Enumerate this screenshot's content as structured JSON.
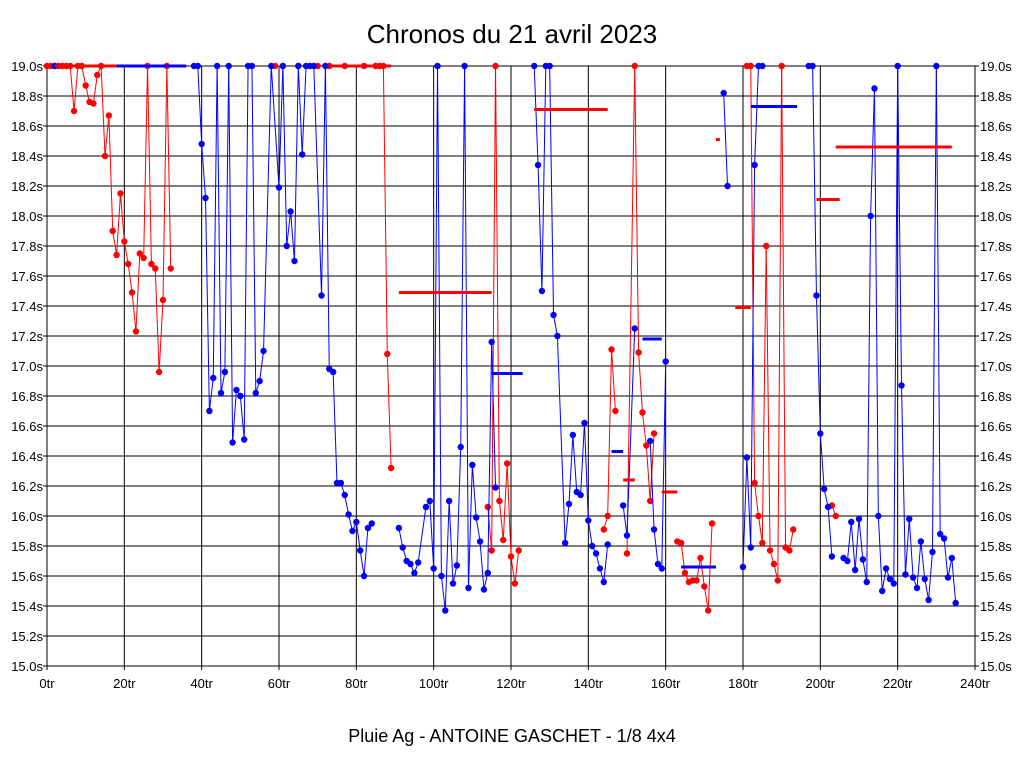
{
  "chart_data": {
    "type": "line",
    "title": "Chronos du 21 avril 2023",
    "subtitle": "Pluie Ag - ANTOINE GASCHET - 1/8 4x4",
    "xlabel": "",
    "ylabel": "",
    "xlim": [
      0,
      240
    ],
    "ylim": [
      15.0,
      19.0
    ],
    "grid": true,
    "legend": "none",
    "x_ticks": [
      {
        "value": 0,
        "label": "0tr"
      },
      {
        "value": 20,
        "label": "20tr"
      },
      {
        "value": 40,
        "label": "40tr"
      },
      {
        "value": 60,
        "label": "60tr"
      },
      {
        "value": 80,
        "label": "80tr"
      },
      {
        "value": 100,
        "label": "100tr"
      },
      {
        "value": 120,
        "label": "120tr"
      },
      {
        "value": 140,
        "label": "140tr"
      },
      {
        "value": 160,
        "label": "160tr"
      },
      {
        "value": 180,
        "label": "180tr"
      },
      {
        "value": 200,
        "label": "200tr"
      },
      {
        "value": 220,
        "label": "220tr"
      },
      {
        "value": 240,
        "label": "240tr"
      }
    ],
    "y_ticks": [
      {
        "value": 19.0,
        "label": "19.0s"
      },
      {
        "value": 18.8,
        "label": "18.8s"
      },
      {
        "value": 18.6,
        "label": "18.6s"
      },
      {
        "value": 18.4,
        "label": "18.4s"
      },
      {
        "value": 18.2,
        "label": "18.2s"
      },
      {
        "value": 18.0,
        "label": "18.0s"
      },
      {
        "value": 17.8,
        "label": "17.8s"
      },
      {
        "value": 17.6,
        "label": "17.6s"
      },
      {
        "value": 17.4,
        "label": "17.4s"
      },
      {
        "value": 17.2,
        "label": "17.2s"
      },
      {
        "value": 17.0,
        "label": "17.0s"
      },
      {
        "value": 16.8,
        "label": "16.8s"
      },
      {
        "value": 16.6,
        "label": "16.6s"
      },
      {
        "value": 16.4,
        "label": "16.4s"
      },
      {
        "value": 16.2,
        "label": "16.2s"
      },
      {
        "value": 16.0,
        "label": "16.0s"
      },
      {
        "value": 15.8,
        "label": "15.8s"
      },
      {
        "value": 15.6,
        "label": "15.6s"
      },
      {
        "value": 15.4,
        "label": "15.4s"
      },
      {
        "value": 15.2,
        "label": "15.2s"
      },
      {
        "value": 15.0,
        "label": "15.0s"
      }
    ],
    "series": [
      {
        "color": "#ff0000",
        "values": [
          [
            0,
            19.0
          ],
          [
            1,
            19.0
          ],
          [
            2,
            19.0
          ],
          [
            3,
            19.0
          ],
          [
            4,
            19.0
          ],
          [
            5,
            19.0
          ],
          [
            6,
            19.0
          ],
          [
            7,
            18.7
          ],
          [
            8,
            19.0
          ],
          [
            9,
            19.0
          ],
          [
            10,
            18.87
          ],
          [
            11,
            18.76
          ],
          [
            12,
            18.75
          ],
          [
            13,
            18.94
          ],
          [
            14,
            19.0
          ],
          [
            15,
            18.4
          ],
          [
            16,
            18.67
          ],
          [
            17,
            17.9
          ],
          [
            18,
            17.74
          ],
          [
            19,
            18.15
          ],
          [
            20,
            17.83
          ],
          [
            21,
            17.68
          ],
          [
            22,
            17.49
          ],
          [
            23,
            17.23
          ],
          [
            24,
            17.75
          ],
          [
            25,
            17.72
          ],
          [
            26,
            19.0
          ],
          [
            27,
            17.68
          ],
          [
            28,
            17.65
          ],
          [
            29,
            16.96
          ],
          [
            30,
            17.44
          ],
          [
            31,
            19.0
          ],
          [
            32,
            17.65
          ],
          [
            59,
            19.0
          ],
          [
            61,
            19.0
          ],
          [
            65,
            19.0
          ],
          [
            70,
            19.0
          ],
          [
            73,
            19.0
          ],
          [
            77,
            19.0
          ],
          [
            82,
            19.0
          ],
          [
            85,
            19.0
          ],
          [
            86,
            19.0
          ],
          [
            87,
            19.0
          ],
          [
            88,
            17.08
          ],
          [
            89,
            16.32
          ],
          [
            114,
            16.06
          ],
          [
            115,
            15.77
          ],
          [
            116,
            19.0
          ],
          [
            117,
            16.1
          ],
          [
            118,
            15.84
          ],
          [
            119,
            16.35
          ],
          [
            120,
            15.73
          ],
          [
            121,
            15.55
          ],
          [
            122,
            15.77
          ],
          [
            144,
            15.91
          ],
          [
            145,
            16.0
          ],
          [
            146,
            17.11
          ],
          [
            147,
            16.7
          ],
          [
            150,
            15.75
          ],
          [
            152,
            19.0
          ],
          [
            153,
            17.09
          ],
          [
            154,
            16.69
          ],
          [
            155,
            16.47
          ],
          [
            156,
            16.1
          ],
          [
            157,
            16.55
          ],
          [
            163,
            15.83
          ],
          [
            164,
            15.82
          ],
          [
            165,
            15.62
          ],
          [
            166,
            15.56
          ],
          [
            167,
            15.57
          ],
          [
            168,
            15.57
          ],
          [
            169,
            15.72
          ],
          [
            170,
            15.53
          ],
          [
            171,
            15.37
          ],
          [
            172,
            15.95
          ],
          [
            181,
            19.0
          ],
          [
            182,
            19.0
          ],
          [
            183,
            16.22
          ],
          [
            184,
            16.0
          ],
          [
            185,
            15.82
          ],
          [
            186,
            17.8
          ],
          [
            187,
            15.77
          ],
          [
            188,
            15.68
          ],
          [
            189,
            15.57
          ],
          [
            190,
            19.0
          ],
          [
            191,
            15.79
          ],
          [
            192,
            15.77
          ],
          [
            193,
            15.91
          ],
          [
            203,
            16.07
          ],
          [
            204,
            16.0
          ]
        ]
      },
      {
        "color": "#0000ff",
        "values": [
          [
            2,
            19.0
          ],
          [
            38,
            19.0
          ],
          [
            39,
            19.0
          ],
          [
            40,
            18.48
          ],
          [
            41,
            18.12
          ],
          [
            42,
            16.7
          ],
          [
            43,
            16.92
          ],
          [
            44,
            19.0
          ],
          [
            45,
            16.82
          ],
          [
            46,
            16.96
          ],
          [
            47,
            19.0
          ],
          [
            48,
            16.49
          ],
          [
            49,
            16.84
          ],
          [
            50,
            16.8
          ],
          [
            51,
            16.51
          ],
          [
            52,
            19.0
          ],
          [
            53,
            19.0
          ],
          [
            54,
            16.82
          ],
          [
            55,
            16.9
          ],
          [
            56,
            17.1
          ],
          [
            58,
            19.0
          ],
          [
            60,
            18.19
          ],
          [
            61,
            19.0
          ],
          [
            62,
            17.8
          ],
          [
            63,
            18.03
          ],
          [
            64,
            17.7
          ],
          [
            65,
            19.0
          ],
          [
            66,
            18.41
          ],
          [
            67,
            19.0
          ],
          [
            68,
            19.0
          ],
          [
            69,
            19.0
          ],
          [
            71,
            17.47
          ],
          [
            72,
            19.0
          ],
          [
            73,
            16.98
          ],
          [
            74,
            16.96
          ],
          [
            75,
            16.22
          ],
          [
            76,
            16.22
          ],
          [
            77,
            16.14
          ],
          [
            78,
            16.01
          ],
          [
            79,
            15.9
          ],
          [
            80,
            15.96
          ],
          [
            81,
            15.77
          ],
          [
            82,
            15.6
          ],
          [
            83,
            15.92
          ],
          [
            84,
            15.95
          ],
          [
            91,
            15.92
          ],
          [
            92,
            15.79
          ],
          [
            93,
            15.7
          ],
          [
            94,
            15.68
          ],
          [
            95,
            15.62
          ],
          [
            96,
            15.69
          ],
          [
            98,
            16.06
          ],
          [
            99,
            16.1
          ],
          [
            100,
            15.65
          ],
          [
            101,
            19.0
          ],
          [
            102,
            15.6
          ],
          [
            103,
            15.37
          ],
          [
            104,
            16.1
          ],
          [
            105,
            15.55
          ],
          [
            106,
            15.67
          ],
          [
            107,
            16.46
          ],
          [
            108,
            19.0
          ],
          [
            109,
            15.52
          ],
          [
            110,
            16.34
          ],
          [
            111,
            15.99
          ],
          [
            112,
            15.83
          ],
          [
            113,
            15.51
          ],
          [
            114,
            15.62
          ],
          [
            115,
            17.16
          ],
          [
            116,
            16.19
          ],
          [
            126,
            19.0
          ],
          [
            127,
            18.34
          ],
          [
            128,
            17.5
          ],
          [
            129,
            19.0
          ],
          [
            130,
            19.0
          ],
          [
            131,
            17.34
          ],
          [
            132,
            17.2
          ],
          [
            134,
            15.82
          ],
          [
            135,
            16.08
          ],
          [
            136,
            16.54
          ],
          [
            137,
            16.16
          ],
          [
            138,
            16.14
          ],
          [
            139,
            16.62
          ],
          [
            140,
            15.97
          ],
          [
            141,
            15.8
          ],
          [
            142,
            15.75
          ],
          [
            143,
            15.65
          ],
          [
            144,
            15.56
          ],
          [
            145,
            15.81
          ],
          [
            149,
            16.07
          ],
          [
            150,
            15.87
          ],
          [
            152,
            17.25
          ],
          [
            156,
            16.5
          ],
          [
            157,
            15.91
          ],
          [
            158,
            15.68
          ],
          [
            159,
            15.65
          ],
          [
            160,
            17.03
          ],
          [
            175,
            18.82
          ],
          [
            176,
            18.2
          ],
          [
            180,
            15.66
          ],
          [
            181,
            16.39
          ],
          [
            182,
            15.79
          ],
          [
            183,
            18.34
          ],
          [
            184,
            19.0
          ],
          [
            185,
            19.0
          ],
          [
            197,
            19.0
          ],
          [
            198,
            19.0
          ],
          [
            199,
            17.47
          ],
          [
            200,
            16.55
          ],
          [
            201,
            16.18
          ],
          [
            202,
            16.06
          ],
          [
            203,
            15.73
          ],
          [
            206,
            15.72
          ],
          [
            207,
            15.7
          ],
          [
            208,
            15.96
          ],
          [
            209,
            15.64
          ],
          [
            210,
            15.98
          ],
          [
            211,
            15.71
          ],
          [
            212,
            15.56
          ],
          [
            213,
            18.0
          ],
          [
            214,
            18.85
          ],
          [
            215,
            16.0
          ],
          [
            216,
            15.5
          ],
          [
            217,
            15.65
          ],
          [
            218,
            15.58
          ],
          [
            219,
            15.55
          ],
          [
            220,
            19.0
          ],
          [
            221,
            16.87
          ],
          [
            222,
            15.61
          ],
          [
            223,
            15.98
          ],
          [
            224,
            15.59
          ],
          [
            225,
            15.52
          ],
          [
            226,
            15.83
          ],
          [
            227,
            15.58
          ],
          [
            228,
            15.44
          ],
          [
            229,
            15.76
          ],
          [
            230,
            19.0
          ],
          [
            231,
            15.88
          ],
          [
            232,
            15.85
          ],
          [
            233,
            15.59
          ],
          [
            234,
            15.72
          ],
          [
            235,
            15.42
          ]
        ]
      }
    ],
    "reference_lines": [
      {
        "color": "#ff0000",
        "x_start": 2,
        "x_end": 18,
        "y": 19.0
      },
      {
        "color": "#0000ff",
        "x_start": 18,
        "x_end": 36,
        "y": 19.0
      },
      {
        "color": "#ff0000",
        "x_start": 73,
        "x_end": 89,
        "y": 19.0
      },
      {
        "color": "#ff0000",
        "x_start": 91,
        "x_end": 115,
        "y": 17.49
      },
      {
        "color": "#0000ff",
        "x_start": 115,
        "x_end": 123,
        "y": 16.95
      },
      {
        "color": "#ff0000",
        "x_start": 126,
        "x_end": 145,
        "y": 18.71
      },
      {
        "color": "#0000ff",
        "x_start": 146,
        "x_end": 149,
        "y": 16.43
      },
      {
        "color": "#ff0000",
        "x_start": 149,
        "x_end": 152,
        "y": 16.24
      },
      {
        "color": "#0000ff",
        "x_start": 154,
        "x_end": 159,
        "y": 17.18
      },
      {
        "color": "#ff0000",
        "x_start": 159,
        "x_end": 163,
        "y": 16.16
      },
      {
        "color": "#0000ff",
        "x_start": 164,
        "x_end": 173,
        "y": 15.66
      },
      {
        "color": "#ff0000",
        "x_start": 173,
        "x_end": 174,
        "y": 18.51
      },
      {
        "color": "#ff0000",
        "x_start": 178,
        "x_end": 182,
        "y": 17.39
      },
      {
        "color": "#0000ff",
        "x_start": 182,
        "x_end": 194,
        "y": 18.73
      },
      {
        "color": "#ff0000",
        "x_start": 199,
        "x_end": 205,
        "y": 18.11
      },
      {
        "color": "#ff0000",
        "x_start": 204,
        "x_end": 234,
        "y": 18.46
      }
    ]
  }
}
